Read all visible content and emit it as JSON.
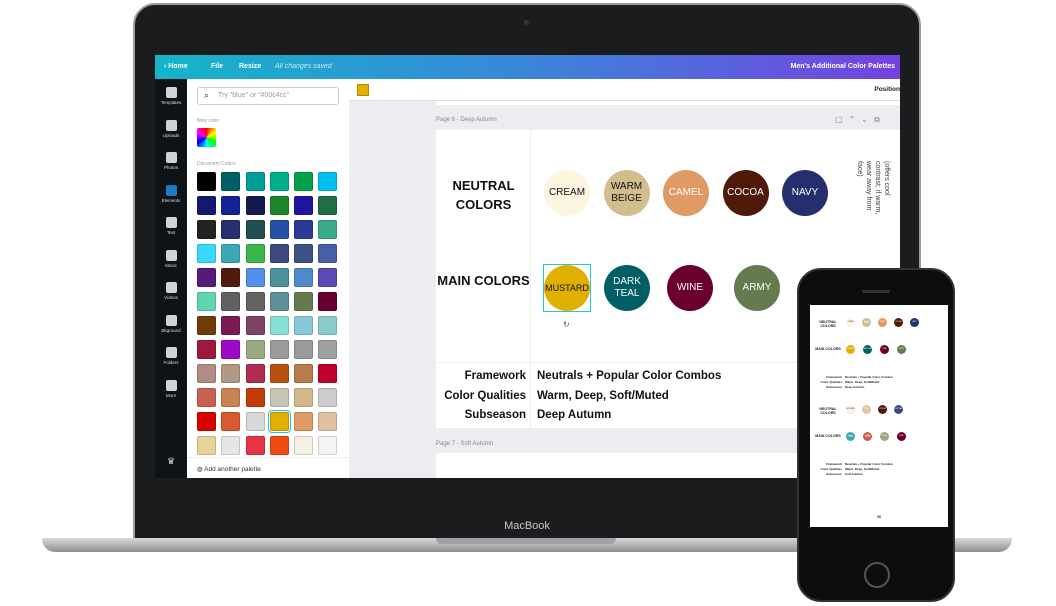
{
  "device": {
    "laptop_brand": "MacBook"
  },
  "topbar": {
    "home": "Home",
    "file": "File",
    "resize": "Resize",
    "status": "All changes saved",
    "title": "Men's Additional Color Palettes"
  },
  "rail": [
    "Templates",
    "Uploads",
    "Photos",
    "Elements",
    "Text",
    "Music",
    "Videos",
    "Bkground",
    "Folders",
    "More"
  ],
  "panel": {
    "search_placeholder": "Try \"blue\" or \"#00c4cc\"",
    "new_color": "New color",
    "document_colors": "Document Colors",
    "add_palette": "Add another palette",
    "swatches": [
      "#000000",
      "#005f66",
      "#009e96",
      "#00b08c",
      "#00a34a",
      "#00c0f0",
      "#111a6e",
      "#152296",
      "#141a4e",
      "#1f852b",
      "#2114a0",
      "#1f6e46",
      "#222222",
      "#26306e",
      "#204e52",
      "#2650a8",
      "#2b3a94",
      "#3aab8a",
      "#38d8ff",
      "#3aa8b6",
      "#3ab54a",
      "#3d4a82",
      "#3d5282",
      "#4560a8",
      "#561a78",
      "#521a0c",
      "#5090ea",
      "#4a9298",
      "#5088cc",
      "#5e4ab4",
      "#60d4b0",
      "#606060",
      "#626262",
      "#5e9098",
      "#657a4e",
      "#6a0030",
      "#6e3c08",
      "#7a1a52",
      "#7e4268",
      "#86e0d8",
      "#86c8d8",
      "#8cccc8",
      "#9c1a3e",
      "#9c0ac8",
      "#9aaa80",
      "#9a9a9a",
      "#9a9a9a",
      "#a0a0a0",
      "#b08c84",
      "#b09884",
      "#b02c52",
      "#b85010",
      "#b87c4a",
      "#c0002a",
      "#c86050",
      "#c88450",
      "#c43c08",
      "#c8c4b4",
      "#d0b88a",
      "#cccccc",
      "#d80000",
      "#d85a30",
      "#d8d8d8",
      "#e0b000",
      "#e09a64",
      "#e0c0a0",
      "#e4d49c",
      "#e6e6e6",
      "#e63444",
      "#f04a10",
      "#f4f0e4",
      "#f4f4f4"
    ],
    "selected_swatch": "#e0b000"
  },
  "toolbar": {
    "current_color": "#e0b000",
    "position": "Position"
  },
  "canvas": {
    "page6_label": "Page 6 - Deep Autumn",
    "page7_label": "Page 7 - Soft Autumn",
    "neutral_label": "NEUTRAL COLORS",
    "main_label": "MAIN COLORS",
    "neutrals": [
      {
        "name": "CREAM",
        "color": "#fdf5e0",
        "text": "#111"
      },
      {
        "name": "WARM BEIGE",
        "color": "#d2bd8e",
        "text": "#111"
      },
      {
        "name": "CAMEL",
        "color": "#e09a64",
        "text": "#fff"
      },
      {
        "name": "COCOA",
        "color": "#4f1a0a",
        "text": "#fff"
      },
      {
        "name": "NAVY",
        "color": "#252f6e",
        "text": "#fff"
      }
    ],
    "note": "(offers cool contrast; if warm, wear away from face)",
    "mains": [
      {
        "name": "MUSTARD",
        "color": "#e0b000",
        "text": "#111"
      },
      {
        "name": "DARK TEAL",
        "color": "#005f66",
        "text": "#fff"
      },
      {
        "name": "WINE",
        "color": "#6a0030",
        "text": "#fff"
      },
      {
        "name": "ARMY",
        "color": "#657a4e",
        "text": "#fff"
      }
    ],
    "info": [
      {
        "k": "Framework",
        "v": "Neutrals + Popular Color Combos"
      },
      {
        "k": "Color Qualities",
        "v": "Warm, Deep, Soft/Muted"
      },
      {
        "k": "Subseason",
        "v": "Deep Autumn"
      }
    ]
  },
  "phone": {
    "page2": {
      "neutrals": [
        {
          "name": "OFF WHITE",
          "color": "#f6f1e6"
        },
        {
          "name": "NUDE",
          "color": "#e3c3a0"
        },
        {
          "name": "COCOA",
          "color": "#4f1a0a"
        },
        {
          "name": "SOFT NAVY",
          "color": "#3d4a82"
        }
      ],
      "mains": [
        {
          "name": "BLUE GREEN",
          "color": "#3aa8b6"
        },
        {
          "name": "TERRA COTTA",
          "color": "#c86050"
        },
        {
          "name": "OLIVE",
          "color": "#9aaa80"
        },
        {
          "name": "WINE",
          "color": "#6a0030"
        }
      ],
      "info": [
        {
          "k": "Framework",
          "v": "Neutrals + Popular Color Combos"
        },
        {
          "k": "Color Qualities",
          "v": "Warm, Deep, Soft/Muted"
        },
        {
          "k": "Subseason",
          "v": "Soft Autumn"
        }
      ]
    },
    "page_number": "30"
  }
}
